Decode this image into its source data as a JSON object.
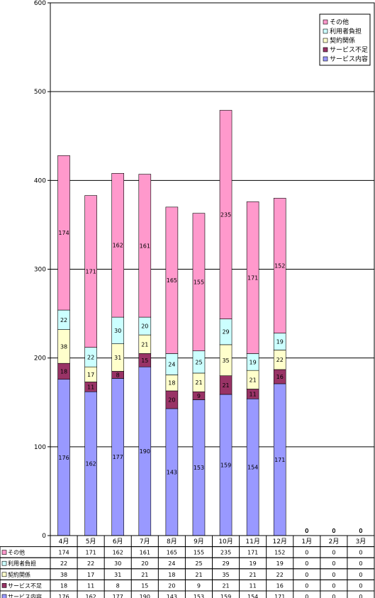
{
  "chart_data": {
    "type": "bar",
    "stacked": true,
    "categories": [
      "4月",
      "5月",
      "6月",
      "7月",
      "8月",
      "9月",
      "10月",
      "11月",
      "12月",
      "1月",
      "2月",
      "3月"
    ],
    "series": [
      {
        "name": "サービス内容",
        "color": "#9999ff",
        "values": [
          176,
          162,
          177,
          190,
          143,
          153,
          159,
          154,
          171,
          0,
          0,
          0
        ]
      },
      {
        "name": "サービス不足",
        "color": "#993366",
        "values": [
          18,
          11,
          8,
          15,
          20,
          9,
          21,
          11,
          16,
          0,
          0,
          0
        ]
      },
      {
        "name": "契約関係",
        "color": "#ffffcc",
        "values": [
          38,
          17,
          31,
          21,
          18,
          21,
          35,
          21,
          22,
          0,
          0,
          0
        ]
      },
      {
        "name": "利用者負担",
        "color": "#ccffff",
        "values": [
          22,
          22,
          30,
          20,
          24,
          25,
          29,
          19,
          19,
          0,
          0,
          0
        ]
      },
      {
        "name": "その他",
        "color": "#ff99cc",
        "values": [
          174,
          171,
          162,
          161,
          165,
          155,
          235,
          171,
          152,
          0,
          0,
          0
        ]
      }
    ],
    "legend_order": [
      "その他",
      "利用者負担",
      "契約関係",
      "サービス不足",
      "サービス内容"
    ],
    "ylim": [
      0,
      600
    ],
    "yticks": [
      0,
      100,
      200,
      300,
      400,
      500,
      600
    ],
    "grid": true,
    "legend_position": "top-right",
    "data_table": true
  }
}
